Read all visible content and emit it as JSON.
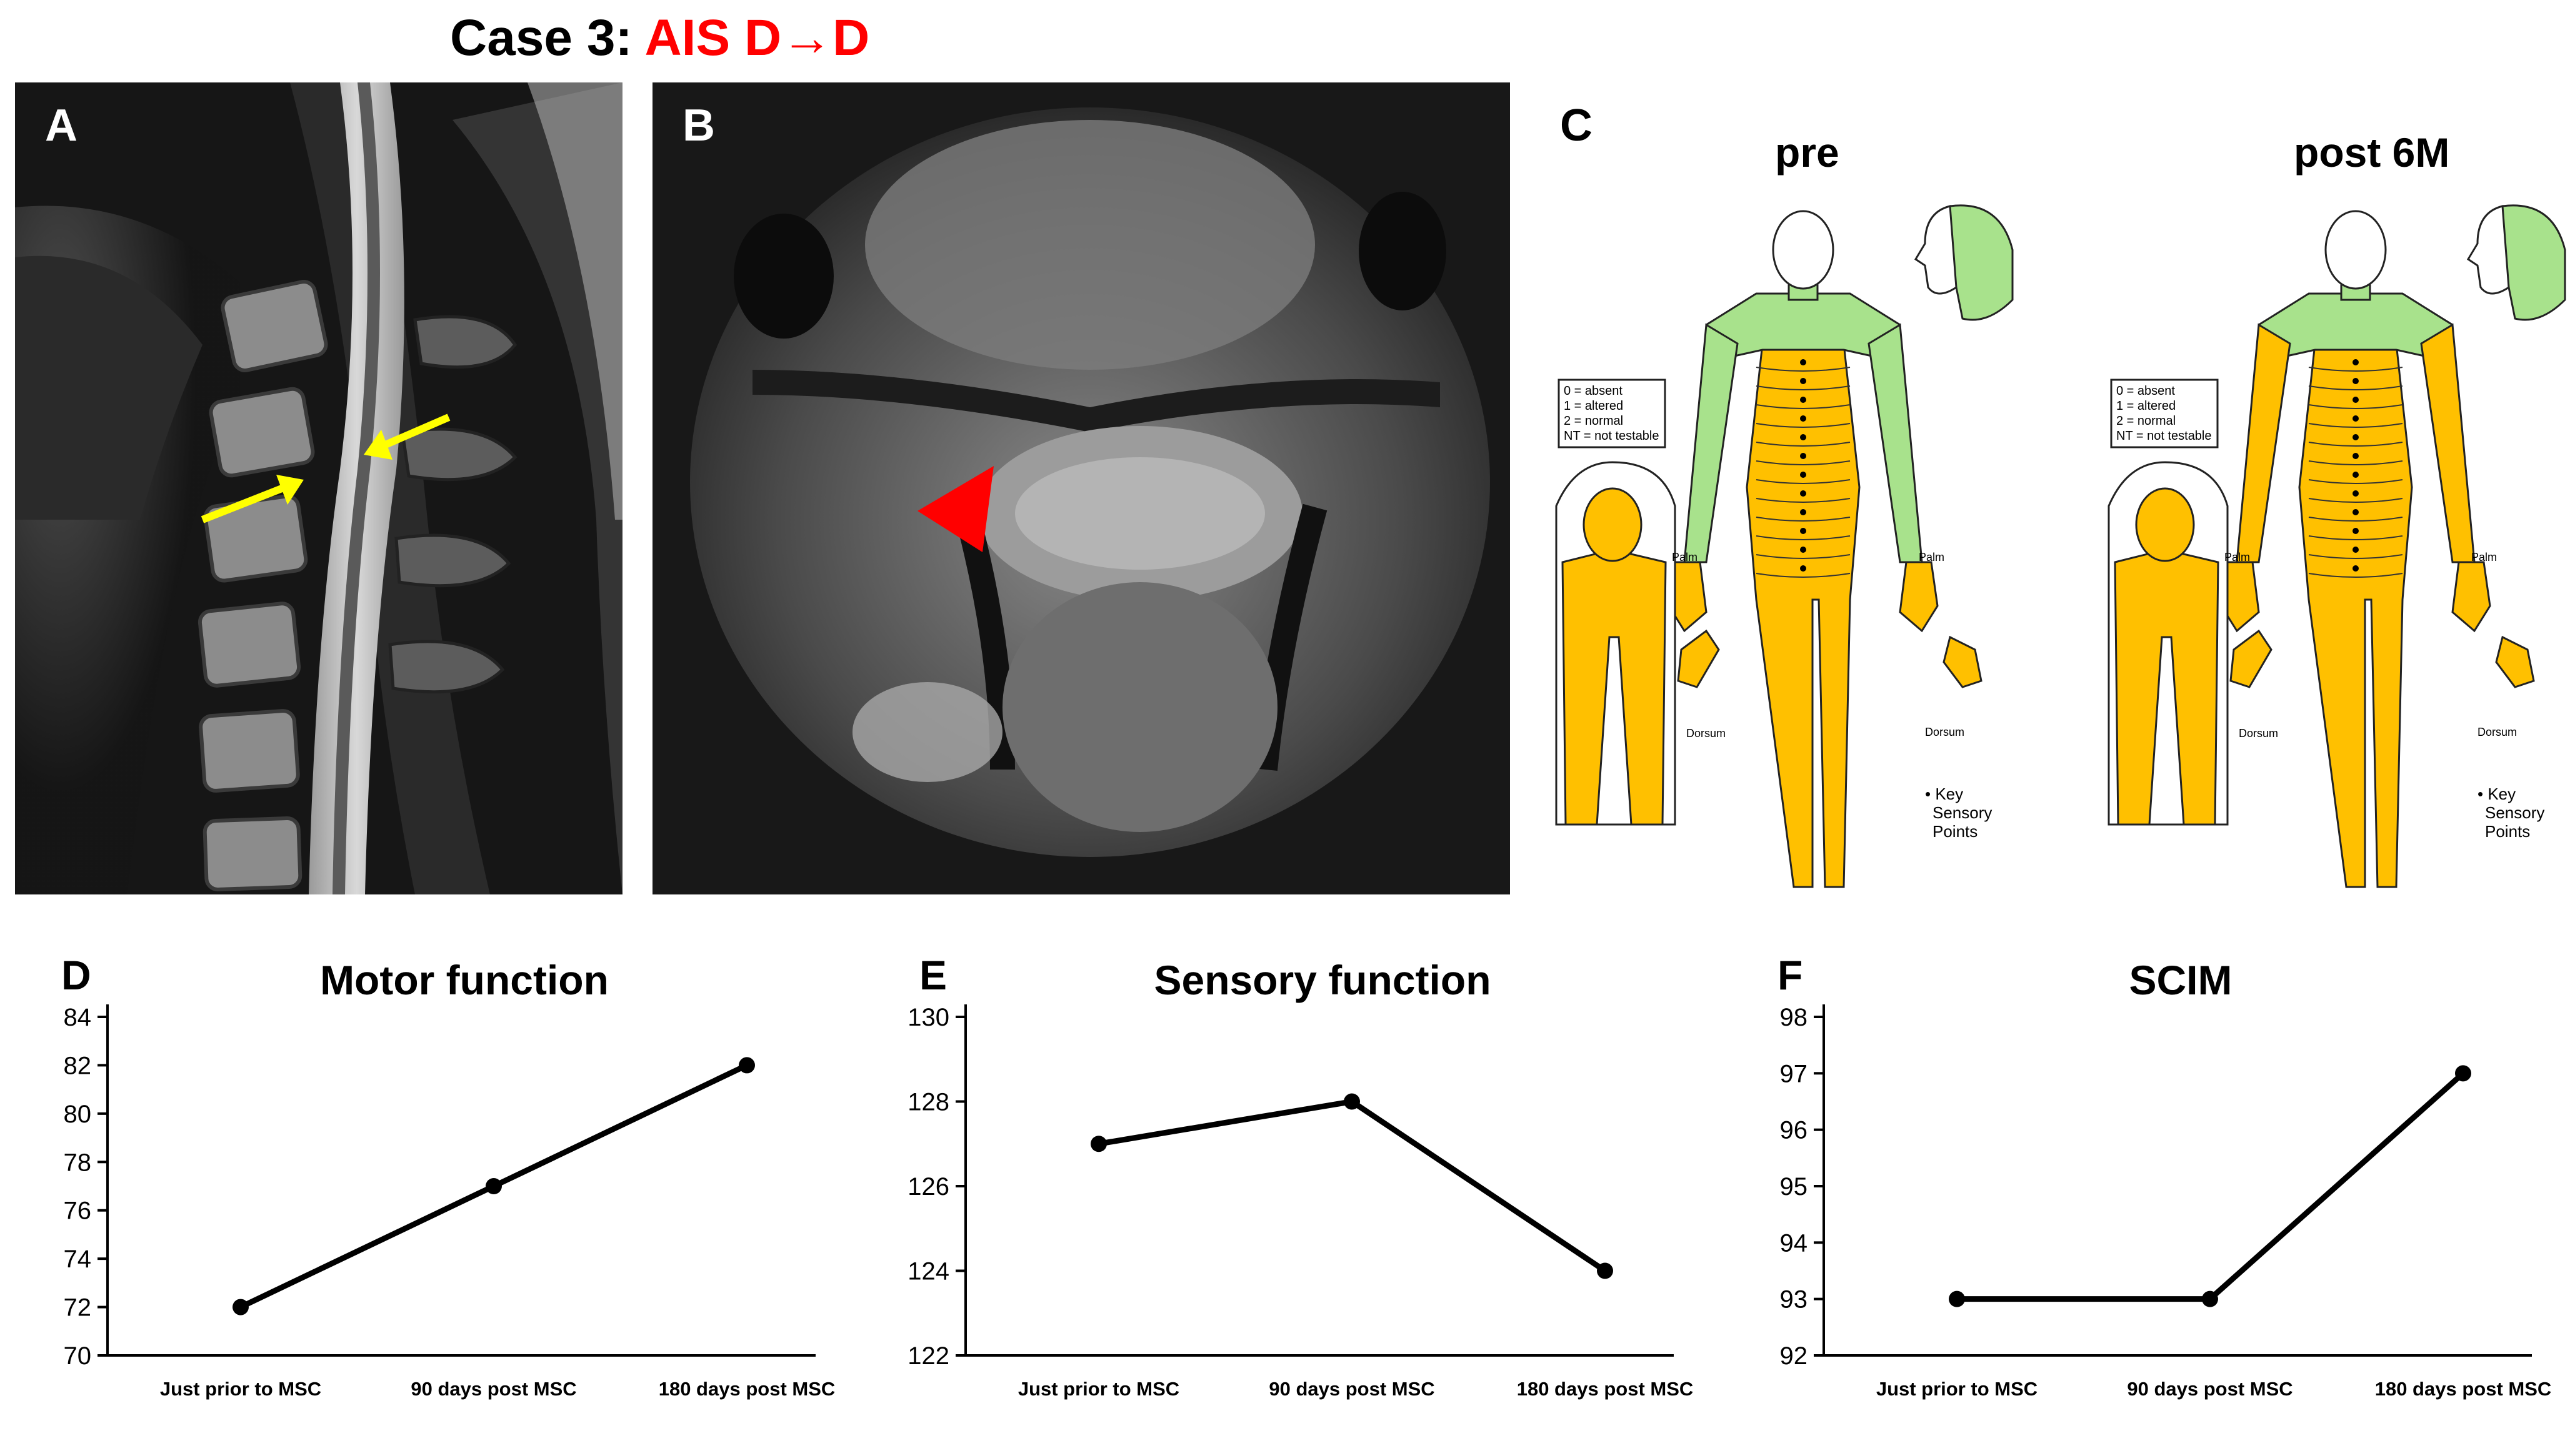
{
  "title": {
    "prefix": "Case 3: ",
    "highlight": "AIS D→D"
  },
  "colors": {
    "accent": "#ff0000",
    "arrow": "#ffff00",
    "sensory_altered": "#ffc000",
    "sensory_normal": "#a8e28c"
  },
  "panels": {
    "a": {
      "letter": "A",
      "markers": [
        "yellow-arrow",
        "yellow-arrow"
      ]
    },
    "b": {
      "letter": "B",
      "markers": [
        "red-arrowhead"
      ]
    },
    "c": {
      "letter": "C",
      "maps": [
        {
          "heading": "pre",
          "legend": [
            "0 = absent",
            "1 = altered",
            "2 = normal",
            "NT = not testable"
          ],
          "labels": {
            "palm_left": "Palm",
            "palm_right": "Palm",
            "dorsum_left": "Dorsum",
            "dorsum_right": "Dorsum",
            "key_line1": "• Key",
            "key_line2": "Sensory",
            "key_line3": "Points"
          }
        },
        {
          "heading": "post 6M",
          "legend": [
            "0 = absent",
            "1 = altered",
            "2 = normal",
            "NT = not testable"
          ],
          "labels": {
            "palm_left": "Palm",
            "palm_right": "Palm",
            "dorsum_left": "Dorsum",
            "dorsum_right": "Dorsum",
            "key_line1": "• Key",
            "key_line2": "Sensory",
            "key_line3": "Points"
          }
        }
      ]
    }
  },
  "chart_data": [
    {
      "id": "d",
      "letter": "D",
      "type": "line",
      "title": "Motor function",
      "categories": [
        "Just prior to MSC",
        "90 days post MSC",
        "180 days post MSC"
      ],
      "values": [
        72,
        77,
        82
      ],
      "ylim": [
        70,
        84
      ],
      "yticks": [
        70,
        72,
        74,
        76,
        78,
        80,
        82,
        84
      ],
      "xlabel": "",
      "ylabel": "",
      "grid": false
    },
    {
      "id": "e",
      "letter": "E",
      "type": "line",
      "title": "Sensory function",
      "categories": [
        "Just prior to MSC",
        "90 days post MSC",
        "180 days post MSC"
      ],
      "values": [
        127,
        128,
        124
      ],
      "ylim": [
        122,
        130
      ],
      "yticks": [
        122,
        124,
        126,
        128,
        130
      ],
      "xlabel": "",
      "ylabel": "",
      "grid": false
    },
    {
      "id": "f",
      "letter": "F",
      "type": "line",
      "title": "SCIM",
      "categories": [
        "Just prior to MSC",
        "90 days post MSC",
        "180 days post MSC"
      ],
      "values": [
        93,
        93,
        97
      ],
      "ylim": [
        92,
        98
      ],
      "yticks": [
        92,
        93,
        94,
        95,
        96,
        97,
        98
      ],
      "xlabel": "",
      "ylabel": "",
      "grid": false
    }
  ]
}
